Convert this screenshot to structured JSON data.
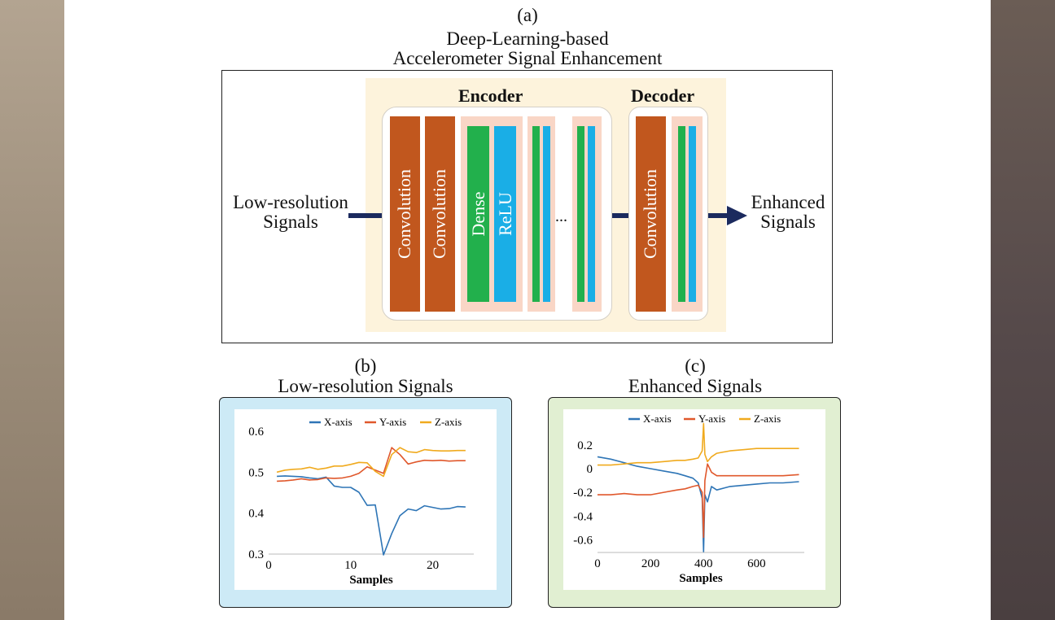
{
  "panel_a": {
    "tag": "(a)",
    "title_line1": "Deep-Learning-based",
    "title_line2": "Accelerometer Signal Enhancement",
    "encoder_title": "Encoder",
    "decoder_title": "Decoder",
    "input_line1": "Low-resolution",
    "input_line2": "Signals",
    "output_line1": "Enhanced",
    "output_line2": "Signals",
    "layer_conv": "Convolution",
    "layer_dense": "Dense",
    "layer_relu": "ReLU",
    "ellipsis": "...",
    "colors": {
      "convolution": "#c1571e",
      "dense": "#22b04c",
      "relu": "#1aaee6",
      "block_bg": "#f9d6c6",
      "arrow": "#1b2a5e"
    }
  },
  "panel_b": {
    "tag": "(b)",
    "title": "Low-resolution Signals"
  },
  "panel_c": {
    "tag": "(c)",
    "title": "Enhanced Signals"
  },
  "chart_data": [
    {
      "type": "line",
      "xlabel": "Samples",
      "ylabel": "",
      "xlim": [
        0,
        25
      ],
      "ylim": [
        0.3,
        0.6
      ],
      "xticks": [
        "0",
        "10",
        "20"
      ],
      "yticks": [
        "0.3",
        "0.4",
        "0.5",
        "0.6"
      ],
      "legend": "top",
      "x": [
        1,
        2,
        3,
        4,
        5,
        6,
        7,
        8,
        9,
        10,
        11,
        12,
        13,
        14,
        15,
        16,
        17,
        18,
        19,
        20,
        21,
        22,
        23,
        24
      ],
      "series": [
        {
          "name": "X-axis",
          "color": "#2e75b6",
          "values": [
            0.49,
            0.491,
            0.49,
            0.489,
            0.486,
            0.484,
            0.488,
            0.466,
            0.463,
            0.463,
            0.451,
            0.419,
            0.42,
            0.298,
            0.35,
            0.394,
            0.41,
            0.406,
            0.418,
            0.414,
            0.41,
            0.411,
            0.416,
            0.415
          ]
        },
        {
          "name": "Y-axis",
          "color": "#e0582c",
          "values": [
            0.478,
            0.479,
            0.481,
            0.484,
            0.481,
            0.482,
            0.486,
            0.485,
            0.486,
            0.49,
            0.497,
            0.513,
            0.505,
            0.497,
            0.56,
            0.543,
            0.52,
            0.525,
            0.529,
            0.528,
            0.529,
            0.527,
            0.528,
            0.528
          ]
        },
        {
          "name": "Z-axis",
          "color": "#f0aa1e",
          "values": [
            0.5,
            0.505,
            0.507,
            0.508,
            0.512,
            0.507,
            0.51,
            0.515,
            0.515,
            0.519,
            0.524,
            0.523,
            0.502,
            0.49,
            0.543,
            0.56,
            0.55,
            0.548,
            0.555,
            0.553,
            0.552,
            0.552,
            0.553,
            0.553
          ]
        }
      ]
    },
    {
      "type": "line",
      "xlabel": "Samples",
      "ylabel": "",
      "xlim": [
        0,
        780
      ],
      "ylim": [
        -0.7,
        0.35
      ],
      "xticks": [
        "0",
        "200",
        "400",
        "600"
      ],
      "yticks": [
        "-0.6",
        "-0.4",
        "-0.2",
        "0",
        "0.2"
      ],
      "legend": "top",
      "x": [
        0,
        50,
        100,
        150,
        200,
        250,
        300,
        330,
        360,
        380,
        395,
        400,
        405,
        415,
        430,
        450,
        500,
        550,
        600,
        650,
        700,
        760
      ],
      "series": [
        {
          "name": "X-axis",
          "color": "#2e75b6",
          "values": [
            0.1,
            0.08,
            0.05,
            0.02,
            0.0,
            -0.02,
            -0.04,
            -0.06,
            -0.08,
            -0.12,
            -0.25,
            -0.7,
            -0.22,
            -0.28,
            -0.15,
            -0.18,
            -0.15,
            -0.14,
            -0.13,
            -0.12,
            -0.12,
            -0.11
          ]
        },
        {
          "name": "Y-axis",
          "color": "#e0582c",
          "values": [
            -0.22,
            -0.22,
            -0.21,
            -0.22,
            -0.22,
            -0.2,
            -0.18,
            -0.17,
            -0.15,
            -0.14,
            -0.2,
            -0.58,
            -0.1,
            0.04,
            -0.03,
            -0.06,
            -0.06,
            -0.06,
            -0.06,
            -0.06,
            -0.06,
            -0.05
          ]
        },
        {
          "name": "Z-axis",
          "color": "#f0aa1e",
          "values": [
            0.03,
            0.03,
            0.04,
            0.05,
            0.05,
            0.06,
            0.07,
            0.07,
            0.08,
            0.09,
            0.15,
            0.38,
            0.12,
            0.06,
            0.1,
            0.13,
            0.15,
            0.16,
            0.17,
            0.17,
            0.17,
            0.17
          ]
        }
      ]
    }
  ]
}
